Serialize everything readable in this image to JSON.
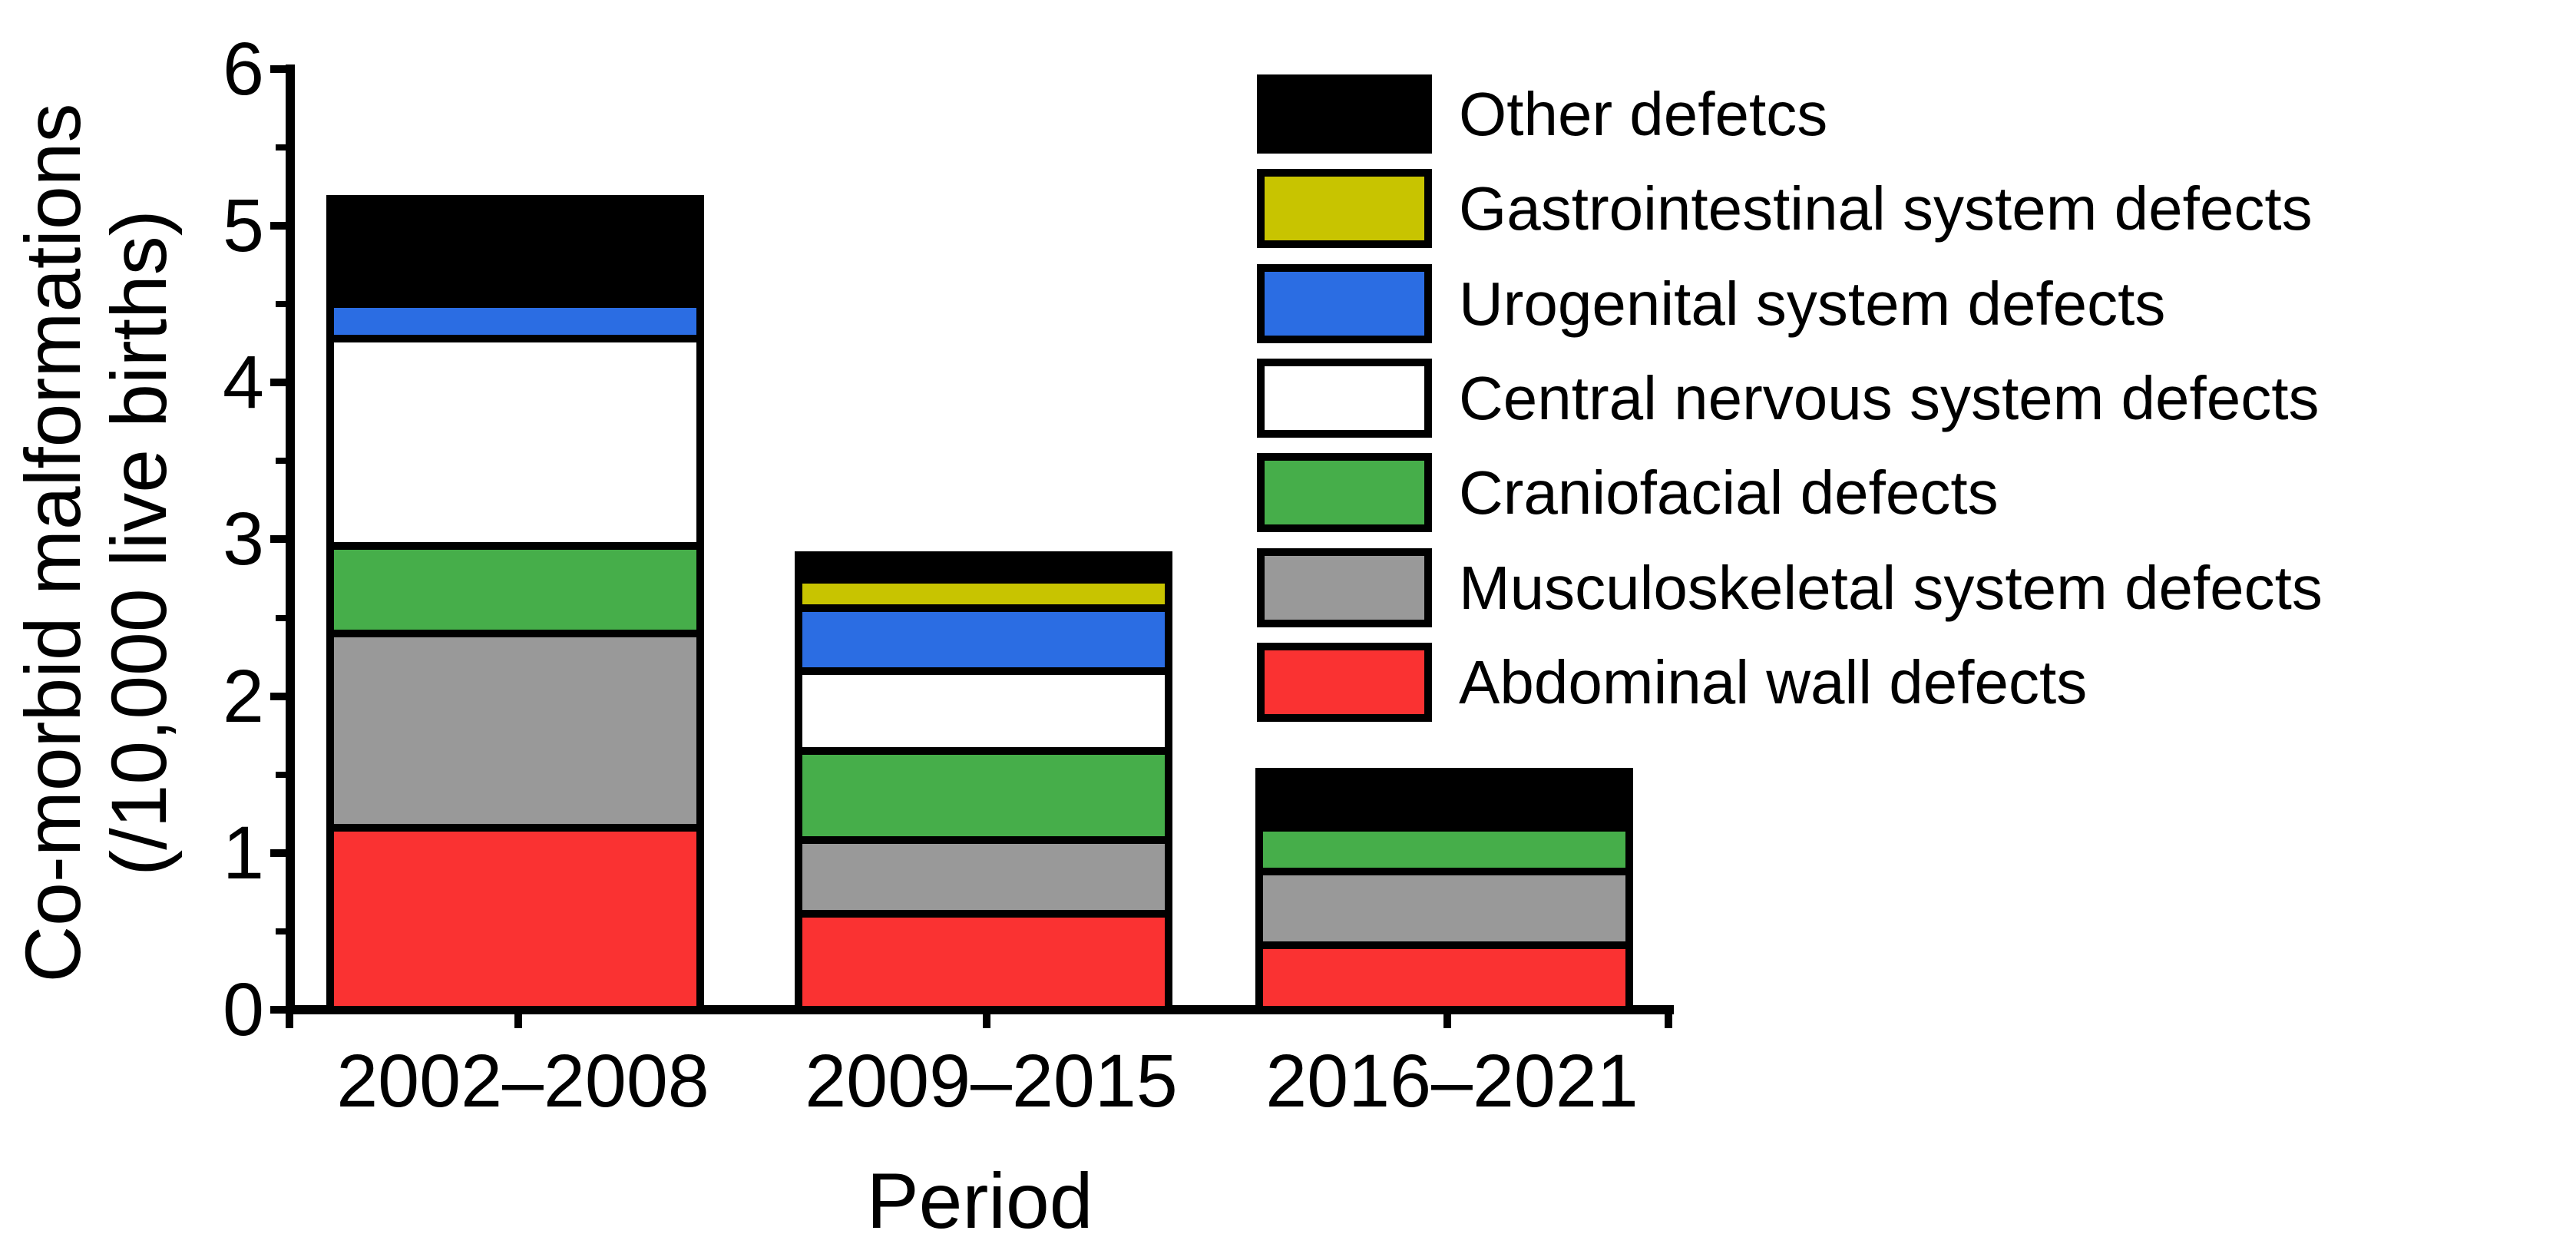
{
  "chart_data": {
    "type": "bar",
    "stacked": true,
    "xlabel": "Period",
    "ylabel": [
      "Co-morbid malformations",
      "(/10,000 live births)"
    ],
    "categories": [
      "2002–2008",
      "2009–2015",
      "2016–2021"
    ],
    "series": [
      {
        "name": "Abdominal wall defects",
        "color": "#FA3232",
        "values": [
          1.16,
          0.61,
          0.41
        ]
      },
      {
        "name": "Musculoskeletal system defects",
        "color": "#999999",
        "values": [
          1.24,
          0.47,
          0.47
        ]
      },
      {
        "name": "Craniofacial defects",
        "color": "#46AE4A",
        "values": [
          0.56,
          0.57,
          0.28
        ]
      },
      {
        "name": "Central nervous system defects",
        "color": "#FFFFFF",
        "values": [
          1.32,
          0.51,
          0
        ]
      },
      {
        "name": "Urogenital system defects",
        "color": "#2B6DE3",
        "values": [
          0.22,
          0.4,
          0
        ]
      },
      {
        "name": "Gastrointestinal system defects",
        "color": "#C8C400",
        "values": [
          0,
          0.18,
          0
        ]
      },
      {
        "name": "Other defetcs",
        "color": "#000000",
        "values": [
          0.67,
          0.16,
          0.36
        ]
      }
    ],
    "ylim": [
      0,
      6
    ],
    "yticks": [
      0,
      1,
      2,
      3,
      4,
      5,
      6
    ],
    "minor_tick_step": 0.5,
    "grid": false,
    "legend_position": "upper-right",
    "legend_order_top_to_bottom": [
      "Other defetcs",
      "Gastrointestinal system defects",
      "Urogenital system defects",
      "Central nervous system defects",
      "Craniofacial defects",
      "Musculoskeletal system defects",
      "Abdominal wall defects"
    ],
    "axis_color": "#000000"
  }
}
